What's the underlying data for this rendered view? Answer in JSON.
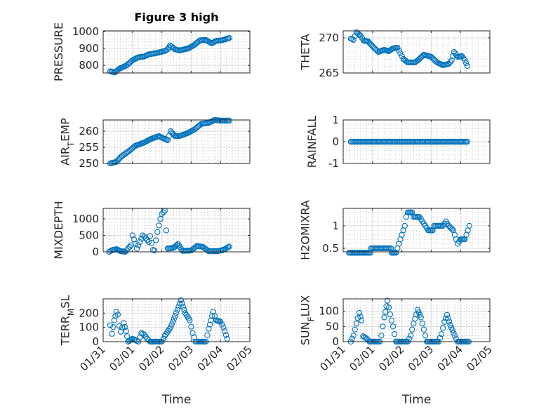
{
  "chart_data": [
    {
      "type": "scatter",
      "title": "Figure 3 high",
      "ylabel": [
        "PRESSURE"
      ],
      "xlabel": "",
      "ylim": [
        755,
        1004
      ],
      "yticks": [
        "800",
        "900",
        "1000"
      ],
      "ytick_values": [
        800,
        900,
        1000
      ],
      "points": [
        [
          0.24,
          765
        ],
        [
          0.4,
          758
        ],
        [
          0.55,
          780
        ],
        [
          0.8,
          800
        ],
        [
          1.0,
          830
        ],
        [
          1.2,
          848
        ],
        [
          1.4,
          852
        ],
        [
          1.55,
          865
        ],
        [
          1.8,
          872
        ],
        [
          2.1,
          885
        ],
        [
          2.2,
          895
        ],
        [
          2.28,
          918
        ],
        [
          2.45,
          895
        ],
        [
          2.6,
          888
        ],
        [
          2.9,
          900
        ],
        [
          3.1,
          920
        ],
        [
          3.3,
          948
        ],
        [
          3.5,
          950
        ],
        [
          3.7,
          930
        ],
        [
          3.85,
          945
        ],
        [
          4.05,
          948
        ],
        [
          4.3,
          962
        ]
      ]
    },
    {
      "type": "scatter",
      "title": "",
      "ylabel": [
        "THETA"
      ],
      "xlabel": "",
      "ylim": [
        265,
        271
      ],
      "yticks": [
        "265",
        "270"
      ],
      "ytick_values": [
        265,
        270
      ],
      "points": [
        [
          0.26,
          269.9
        ],
        [
          0.35,
          269.7
        ],
        [
          0.45,
          270.8
        ],
        [
          0.6,
          270.3
        ],
        [
          0.7,
          269.6
        ],
        [
          0.85,
          269.5
        ],
        [
          1.0,
          268.8
        ],
        [
          1.2,
          268.0
        ],
        [
          1.4,
          268.3
        ],
        [
          1.55,
          268.1
        ],
        [
          1.7,
          268.5
        ],
        [
          1.85,
          268.6
        ],
        [
          1.95,
          267.8
        ],
        [
          2.05,
          267.0
        ],
        [
          2.2,
          266.5
        ],
        [
          2.45,
          266.5
        ],
        [
          2.6,
          267.0
        ],
        [
          2.75,
          267.6
        ],
        [
          3.0,
          267.3
        ],
        [
          3.2,
          266.5
        ],
        [
          3.4,
          266.1
        ],
        [
          3.6,
          266.3
        ],
        [
          3.7,
          266.8
        ],
        [
          3.78,
          268.0
        ],
        [
          3.9,
          267.3
        ],
        [
          4.05,
          267.4
        ],
        [
          4.15,
          266.8
        ],
        [
          4.23,
          266.0
        ]
      ]
    },
    {
      "type": "scatter",
      "title": "",
      "ylabel": [
        "AIR",
        "T",
        "EMP"
      ],
      "xlabel": "",
      "ylim": [
        250,
        263.5
      ],
      "yticks": [
        "250",
        "255",
        "260"
      ],
      "ytick_values": [
        250,
        255,
        260
      ],
      "points": [
        [
          0.24,
          250
        ],
        [
          0.45,
          250.5
        ],
        [
          0.6,
          252
        ],
        [
          0.9,
          254
        ],
        [
          1.1,
          255.5
        ],
        [
          1.4,
          256.5
        ],
        [
          1.6,
          257.5
        ],
        [
          1.9,
          258.5
        ],
        [
          2.05,
          257.8
        ],
        [
          2.2,
          257.2
        ],
        [
          2.3,
          260
        ],
        [
          2.45,
          258.5
        ],
        [
          2.6,
          258.5
        ],
        [
          2.9,
          259.5
        ],
        [
          3.1,
          260.5
        ],
        [
          3.35,
          262.3
        ],
        [
          3.6,
          262.6
        ],
        [
          3.8,
          263.5
        ],
        [
          4.0,
          263.3
        ],
        [
          4.3,
          263.3
        ]
      ]
    },
    {
      "type": "scatter",
      "title": "",
      "ylabel": [
        "RAINFALL"
      ],
      "xlabel": "",
      "ylim": [
        -1,
        1
      ],
      "yticks": [
        "-1",
        "0",
        "1"
      ],
      "ytick_values": [
        -1,
        0,
        1
      ],
      "points": [
        [
          0.26,
          0
        ],
        [
          4.23,
          0
        ]
      ]
    },
    {
      "type": "scatter",
      "title": "",
      "ylabel": [
        "MIXDEPTH"
      ],
      "xlabel": "",
      "ylim": [
        0,
        1320
      ],
      "yticks": [
        "0",
        "500",
        "1000"
      ],
      "ytick_values": [
        0,
        500,
        1000
      ],
      "points": [
        [
          0.2,
          0
        ],
        [
          0.3,
          50
        ],
        [
          0.45,
          80
        ],
        [
          0.6,
          20
        ],
        [
          0.75,
          0
        ],
        [
          0.85,
          100
        ],
        [
          0.95,
          200
        ],
        [
          1.0,
          500
        ],
        [
          1.05,
          380
        ],
        [
          1.15,
          100
        ],
        [
          1.25,
          300
        ],
        [
          1.35,
          500
        ],
        [
          1.45,
          420
        ],
        [
          1.55,
          300
        ],
        [
          1.6,
          480
        ],
        [
          1.7,
          60
        ],
        [
          1.75,
          40
        ],
        [
          1.8,
          350
        ],
        [
          1.85,
          600
        ],
        [
          1.9,
          800
        ],
        [
          1.95,
          1000
        ],
        [
          2.0,
          1150
        ],
        [
          2.05,
          1200
        ],
        [
          2.1,
          1250
        ],
        [
          2.15,
          650
        ],
        [
          2.2,
          100
        ],
        [
          2.4,
          120
        ],
        [
          2.55,
          240
        ],
        [
          2.7,
          30
        ],
        [
          3.0,
          40
        ],
        [
          3.2,
          180
        ],
        [
          3.4,
          150
        ],
        [
          3.6,
          20
        ],
        [
          3.9,
          20
        ],
        [
          4.1,
          60
        ],
        [
          4.3,
          160
        ]
      ]
    },
    {
      "type": "scatter",
      "title": "",
      "ylabel": [
        "H2OMIXRA"
      ],
      "xlabel": "",
      "ylim": [
        0.42,
        1.39
      ],
      "yticks": [
        "0.5",
        "1"
      ],
      "ytick_values": [
        0.5,
        1
      ],
      "points": [
        [
          0.2,
          0.4
        ],
        [
          0.93,
          0.4
        ],
        [
          0.95,
          0.5
        ],
        [
          1.63,
          0.5
        ],
        [
          1.65,
          0.4
        ],
        [
          1.8,
          0.4
        ],
        [
          1.9,
          0.6
        ],
        [
          2.0,
          0.8
        ],
        [
          2.1,
          1.0
        ],
        [
          2.15,
          1.2
        ],
        [
          2.2,
          1.3
        ],
        [
          2.35,
          1.3
        ],
        [
          2.4,
          1.2
        ],
        [
          2.6,
          1.2
        ],
        [
          2.7,
          1.1
        ],
        [
          2.8,
          1.0
        ],
        [
          2.9,
          0.9
        ],
        [
          3.05,
          0.9
        ],
        [
          3.1,
          1.0
        ],
        [
          3.4,
          1.0
        ],
        [
          3.5,
          1.1
        ],
        [
          3.6,
          1.0
        ],
        [
          3.75,
          0.9
        ],
        [
          3.85,
          0.7
        ],
        [
          3.9,
          0.6
        ],
        [
          4.0,
          0.7
        ],
        [
          4.15,
          0.7
        ],
        [
          4.2,
          0.8
        ],
        [
          4.3,
          1.0
        ]
      ]
    },
    {
      "type": "scatter",
      "title": "",
      "ylabel": [
        "TERR",
        "M",
        "SL"
      ],
      "xlabel": "Time",
      "ylim": [
        0,
        300
      ],
      "yticks": [
        "0",
        "100",
        "200"
      ],
      "ytick_values": [
        0,
        100,
        200
      ],
      "points": [
        [
          0.24,
          115
        ],
        [
          0.3,
          55
        ],
        [
          0.38,
          150
        ],
        [
          0.45,
          210
        ],
        [
          0.5,
          190
        ],
        [
          0.55,
          110
        ],
        [
          0.6,
          70
        ],
        [
          0.7,
          130
        ],
        [
          0.78,
          75
        ],
        [
          0.85,
          0
        ],
        [
          1.0,
          20
        ],
        [
          1.1,
          10
        ],
        [
          1.2,
          0
        ],
        [
          1.3,
          60
        ],
        [
          1.4,
          50
        ],
        [
          1.5,
          20
        ],
        [
          1.6,
          0
        ],
        [
          2.0,
          0
        ],
        [
          2.1,
          40
        ],
        [
          2.3,
          100
        ],
        [
          2.45,
          180
        ],
        [
          2.65,
          290
        ],
        [
          2.8,
          200
        ],
        [
          2.95,
          150
        ],
        [
          3.05,
          60
        ],
        [
          3.15,
          0
        ],
        [
          3.5,
          0
        ],
        [
          3.6,
          90
        ],
        [
          3.75,
          210
        ],
        [
          3.85,
          150
        ],
        [
          4.0,
          140
        ],
        [
          4.1,
          100
        ],
        [
          4.23,
          20
        ]
      ]
    },
    {
      "type": "scatter",
      "title": "",
      "ylabel": [
        "SUN",
        "F",
        "LUX"
      ],
      "xlabel": "Time",
      "ylim": [
        0,
        141
      ],
      "yticks": [
        "0",
        "50",
        "100"
      ],
      "ytick_values": [
        0,
        50,
        100
      ],
      "points": [
        [
          0.26,
          0
        ],
        [
          0.35,
          20
        ],
        [
          0.45,
          60
        ],
        [
          0.55,
          95
        ],
        [
          0.62,
          70
        ],
        [
          0.68,
          18
        ],
        [
          0.8,
          10
        ],
        [
          0.9,
          0
        ],
        [
          1.25,
          0
        ],
        [
          1.3,
          20
        ],
        [
          1.4,
          80
        ],
        [
          1.51,
          135
        ],
        [
          1.6,
          90
        ],
        [
          1.7,
          50
        ],
        [
          1.8,
          0
        ],
        [
          2.2,
          0
        ],
        [
          2.3,
          20
        ],
        [
          2.4,
          60
        ],
        [
          2.54,
          105
        ],
        [
          2.65,
          80
        ],
        [
          2.75,
          40
        ],
        [
          2.85,
          0
        ],
        [
          3.25,
          0
        ],
        [
          3.35,
          25
        ],
        [
          3.45,
          65
        ],
        [
          3.54,
          88
        ],
        [
          3.65,
          55
        ],
        [
          3.8,
          20
        ],
        [
          3.9,
          0
        ],
        [
          4.28,
          0
        ]
      ]
    }
  ],
  "x_axis": {
    "xlim_days": [
      0,
      5
    ],
    "xticks": [
      "01/31",
      "02/01",
      "02/02",
      "02/03",
      "02/04",
      "02/05"
    ]
  },
  "colors": {
    "marker": "#0072BD",
    "axis": "#262626",
    "grid": "#DCDCDC",
    "minor_grid": "#C8C8C8"
  }
}
